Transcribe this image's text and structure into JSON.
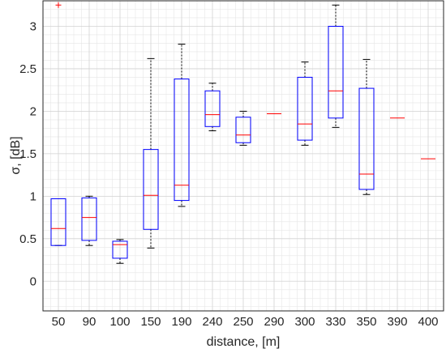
{
  "chart_data": {
    "type": "box",
    "categories": [
      "50",
      "90",
      "100",
      "150",
      "190",
      "240",
      "250",
      "290",
      "300",
      "330",
      "350",
      "390",
      "400"
    ],
    "boxes": [
      {
        "category": "50",
        "min": 0.42,
        "q1": 0.42,
        "median": 0.62,
        "q3": 0.97,
        "max": 0.97,
        "outliers": [
          3.25
        ]
      },
      {
        "category": "90",
        "min": 0.42,
        "q1": 0.48,
        "median": 0.75,
        "q3": 0.98,
        "max": 1.0,
        "outliers": []
      },
      {
        "category": "100",
        "min": 0.21,
        "q1": 0.27,
        "median": 0.43,
        "q3": 0.47,
        "max": 0.49,
        "outliers": []
      },
      {
        "category": "150",
        "min": 0.39,
        "q1": 0.61,
        "median": 1.01,
        "q3": 1.55,
        "max": 2.62,
        "outliers": []
      },
      {
        "category": "190",
        "min": 0.88,
        "q1": 0.95,
        "median": 1.13,
        "q3": 2.38,
        "max": 2.79,
        "outliers": []
      },
      {
        "category": "240",
        "min": 1.77,
        "q1": 1.82,
        "median": 1.96,
        "q3": 2.24,
        "max": 2.33,
        "outliers": []
      },
      {
        "category": "250",
        "min": 1.6,
        "q1": 1.63,
        "median": 1.72,
        "q3": 1.93,
        "max": 2.0,
        "outliers": []
      },
      {
        "category": "290",
        "min": 1.97,
        "q1": 1.97,
        "median": 1.97,
        "q3": 1.97,
        "max": 1.97,
        "outliers": []
      },
      {
        "category": "300",
        "min": 1.6,
        "q1": 1.66,
        "median": 1.85,
        "q3": 2.4,
        "max": 2.58,
        "outliers": []
      },
      {
        "category": "330",
        "min": 1.81,
        "q1": 1.92,
        "median": 2.24,
        "q3": 3.0,
        "max": 3.25,
        "outliers": []
      },
      {
        "category": "350",
        "min": 1.02,
        "q1": 1.08,
        "median": 1.26,
        "q3": 2.27,
        "max": 2.61,
        "outliers": []
      },
      {
        "category": "390",
        "min": 1.92,
        "q1": 1.92,
        "median": 1.92,
        "q3": 1.92,
        "max": 1.92,
        "outliers": []
      },
      {
        "category": "400",
        "min": 1.44,
        "q1": 1.44,
        "median": 1.44,
        "q3": 1.44,
        "max": 1.44,
        "outliers": []
      }
    ],
    "xlabel": "distance, [m]",
    "ylabel": "σ, [dB]",
    "ylim": [
      -0.35,
      3.3
    ],
    "yticks": [
      0,
      0.5,
      1,
      1.5,
      2,
      2.5,
      3
    ],
    "ytick_labels": [
      "0",
      "0.5",
      "1",
      "1.5",
      "2",
      "2.5",
      "3"
    ],
    "grid": true,
    "minor_grid": true,
    "colors": {
      "box": "#0000ff",
      "median": "#ff0000",
      "whisker": "#000000",
      "outlier": "#ff0000",
      "grid": "#d2d2d2",
      "axis": "#262626"
    }
  }
}
